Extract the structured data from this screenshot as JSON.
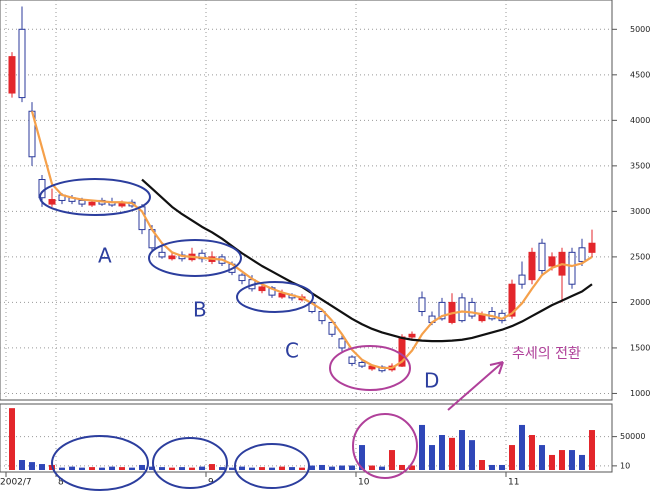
{
  "chart_data": {
    "type": "candlestick",
    "categories": [
      "2002/7",
      null,
      null,
      null,
      null,
      "8",
      null,
      null,
      null,
      null,
      null,
      null,
      null,
      null,
      null,
      null,
      null,
      null,
      null,
      null,
      "9",
      null,
      null,
      null,
      null,
      null,
      null,
      null,
      null,
      null,
      null,
      null,
      null,
      null,
      null,
      "10",
      null,
      null,
      null,
      null,
      null,
      null,
      null,
      null,
      null,
      null,
      null,
      null,
      null,
      null,
      "11",
      null,
      null,
      null,
      null,
      null,
      null,
      null,
      null
    ],
    "open": [
      4300,
      5000,
      4100,
      3350,
      3080,
      3180,
      3150,
      3120,
      3070,
      3120,
      3100,
      3060,
      3100,
      3050,
      2800,
      2550,
      2480,
      2520,
      2470,
      2540,
      2450,
      2500,
      2420,
      2300,
      2250,
      2130,
      2160,
      2060,
      2080,
      2030,
      2000,
      1900,
      1780,
      1600,
      1400,
      1340,
      1270,
      1290,
      1260,
      1300,
      1620,
      2050,
      1850,
      2000,
      1780,
      2050,
      2000,
      1800,
      1900,
      1880,
      1850,
      2300,
      2250,
      2650,
      2400,
      2300,
      2550,
      2600,
      2550
    ],
    "high": [
      4750,
      5250,
      4200,
      3400,
      3250,
      3200,
      3180,
      3150,
      3130,
      3150,
      3150,
      3120,
      3130,
      3080,
      2850,
      2650,
      2560,
      2560,
      2600,
      2580,
      2560,
      2530,
      2450,
      2320,
      2300,
      2220,
      2180,
      2140,
      2100,
      2090,
      2020,
      1920,
      1800,
      1650,
      1420,
      1360,
      1320,
      1310,
      1330,
      1650,
      1680,
      2120,
      1900,
      2050,
      2100,
      2100,
      2050,
      1900,
      1950,
      1920,
      2250,
      2450,
      2600,
      2700,
      2550,
      2600,
      2600,
      2700,
      2800
    ],
    "low": [
      4250,
      4200,
      3500,
      3050,
      3050,
      3080,
      3080,
      3050,
      3050,
      3060,
      3050,
      3040,
      3040,
      2750,
      2550,
      2480,
      2460,
      2450,
      2450,
      2440,
      2420,
      2400,
      2300,
      2200,
      2120,
      2100,
      2050,
      2040,
      2020,
      2010,
      1880,
      1760,
      1620,
      1450,
      1300,
      1280,
      1250,
      1230,
      1240,
      1290,
      1600,
      1850,
      1750,
      1800,
      1760,
      1780,
      1820,
      1780,
      1800,
      1770,
      1820,
      2150,
      2200,
      2300,
      2350,
      2000,
      2150,
      2400,
      2500
    ],
    "close": [
      4700,
      4250,
      3600,
      3150,
      3130,
      3120,
      3110,
      3080,
      3100,
      3080,
      3070,
      3090,
      3060,
      2800,
      2600,
      2500,
      2510,
      2480,
      2530,
      2480,
      2500,
      2430,
      2330,
      2240,
      2150,
      2170,
      2080,
      2100,
      2050,
      2060,
      1900,
      1800,
      1650,
      1500,
      1330,
      1300,
      1300,
      1250,
      1300,
      1620,
      1650,
      1900,
      1780,
      1820,
      2000,
      1800,
      1850,
      1870,
      1820,
      1800,
      2200,
      2200,
      2550,
      2350,
      2500,
      2550,
      2200,
      2450,
      2650
    ],
    "volume": [
      200000000,
      55,
      30,
      17,
      13,
      6,
      8,
      6,
      7,
      6,
      8,
      7,
      6,
      13,
      8,
      7,
      6,
      7,
      6,
      8,
      17,
      7,
      6,
      8,
      6,
      7,
      6,
      8,
      7,
      6,
      11,
      13,
      8,
      11,
      11,
      4300,
      11,
      8,
      1000,
      13,
      11,
      1500000,
      4300,
      80000,
      35000,
      340000,
      18000,
      55,
      13,
      13,
      4300,
      1500000,
      80000,
      4300,
      240,
      1000,
      1000,
      240,
      340000
    ],
    "series": [
      {
        "color": "#f5a04a",
        "values": [
          null,
          null,
          4100,
          3700,
          3300,
          3180,
          3150,
          3130,
          3120,
          3110,
          3100,
          3100,
          3090,
          3000,
          2800,
          2650,
          2550,
          2510,
          2500,
          2490,
          2480,
          2470,
          2420,
          2340,
          2260,
          2200,
          2150,
          2110,
          2080,
          2050,
          1990,
          1920,
          1800,
          1650,
          1480,
          1370,
          1310,
          1280,
          1280,
          1350,
          1470,
          1650,
          1780,
          1850,
          1880,
          1900,
          1890,
          1870,
          1850,
          1820,
          1880,
          1990,
          2150,
          2300,
          2380,
          2420,
          2400,
          2430,
          2500
        ]
      },
      {
        "color": "#111111",
        "values": [
          null,
          null,
          null,
          null,
          null,
          null,
          null,
          null,
          null,
          null,
          null,
          null,
          null,
          3350,
          3250,
          3150,
          3050,
          2970,
          2900,
          2830,
          2770,
          2700,
          2620,
          2540,
          2470,
          2400,
          2340,
          2280,
          2220,
          2170,
          2100,
          2030,
          1960,
          1890,
          1820,
          1760,
          1710,
          1670,
          1640,
          1610,
          1590,
          1580,
          1575,
          1575,
          1580,
          1590,
          1610,
          1640,
          1670,
          1700,
          1740,
          1790,
          1850,
          1910,
          1970,
          2020,
          2070,
          2120,
          2200
        ]
      }
    ],
    "up_color": "#e3262b",
    "down_color": "#2b3a9b",
    "ylim": [
      950,
      5300
    ],
    "yticks": [
      1000,
      1500,
      2000,
      2500,
      3000,
      3500,
      4000,
      4500,
      5000
    ],
    "volume_ylim": [
      3,
      500000000
    ],
    "volume_yticks": [
      10,
      50000
    ],
    "volume_log": true,
    "grid": true,
    "annotations": [
      "A",
      "B",
      "C",
      "D",
      "추세의 전환"
    ]
  }
}
